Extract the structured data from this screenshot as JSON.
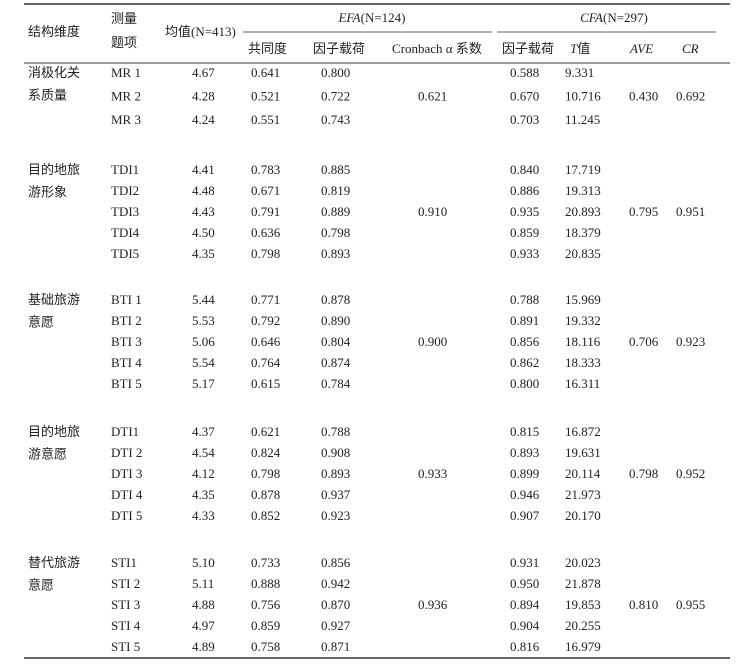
{
  "header": {
    "dimension": "结构维度",
    "item": [
      "测量",
      "题项"
    ],
    "mean": "均值(N=413)",
    "efa": {
      "name": "EFA",
      "n": "(N=124)"
    },
    "cfa": {
      "name": "CFA",
      "n": "(N=297)"
    },
    "sub": {
      "communality": "共同度",
      "efa_loading": "因子载荷",
      "cronbach": "Cronbach α 系数",
      "cfa_loading": "因子载荷",
      "t": "T",
      "t_suffix": "值",
      "ave": "AVE",
      "cr": "CR"
    }
  },
  "groups": [
    {
      "dimension": [
        "消极化关",
        "系质量"
      ],
      "cronbach": "0.621",
      "ave": "0.430",
      "cr": "0.692",
      "rows": [
        [
          "MR 1",
          "4.67",
          "0.641",
          "0.800",
          "0.588",
          "9.331"
        ],
        [
          "MR 2",
          "4.28",
          "0.521",
          "0.722",
          "0.670",
          "10.716"
        ],
        [
          "MR 3",
          "4.24",
          "0.551",
          "0.743",
          "0.703",
          "11.245"
        ]
      ]
    },
    {
      "dimension": [
        "目的地旅",
        "游形象"
      ],
      "cronbach": "0.910",
      "ave": "0.795",
      "cr": "0.951",
      "rows": [
        [
          "TDI1",
          "4.41",
          "0.783",
          "0.885",
          "0.840",
          "17.719"
        ],
        [
          "TDI2",
          "4.48",
          "0.671",
          "0.819",
          "0.886",
          "19.313"
        ],
        [
          "TDI3",
          "4.43",
          "0.791",
          "0.889",
          "0.935",
          "20.893"
        ],
        [
          "TDI4",
          "4.50",
          "0.636",
          "0.798",
          "0.859",
          "18.379"
        ],
        [
          "TDI5",
          "4.35",
          "0.798",
          "0.893",
          "0.933",
          "20.835"
        ]
      ]
    },
    {
      "dimension": [
        "基础旅游",
        "意愿"
      ],
      "cronbach": "0.900",
      "ave": "0.706",
      "cr": "0.923",
      "rows": [
        [
          "BTI 1",
          "5.44",
          "0.771",
          "0.878",
          "0.788",
          "15.969"
        ],
        [
          "BTI 2",
          "5.53",
          "0.792",
          "0.890",
          "0.891",
          "19.332"
        ],
        [
          "BTI 3",
          "5.06",
          "0.646",
          "0.804",
          "0.856",
          "18.116"
        ],
        [
          "BTI 4",
          "5.54",
          "0.764",
          "0.874",
          "0.862",
          "18.333"
        ],
        [
          "BTI 5",
          "5.17",
          "0.615",
          "0.784",
          "0.800",
          "16.311"
        ]
      ]
    },
    {
      "dimension": [
        "目的地旅",
        "游意愿"
      ],
      "cronbach": "0.933",
      "ave": "0.798",
      "cr": "0.952",
      "rows": [
        [
          "DTI1",
          "4.37",
          "0.621",
          "0.788",
          "0.815",
          "16.872"
        ],
        [
          "DTI 2",
          "4.54",
          "0.824",
          "0.908",
          "0.893",
          "19.631"
        ],
        [
          "DTI 3",
          "4.12",
          "0.798",
          "0.893",
          "0.899",
          "20.114"
        ],
        [
          "DTI 4",
          "4.35",
          "0.878",
          "0.937",
          "0.946",
          "21.973"
        ],
        [
          "DTI 5",
          "4.33",
          "0.852",
          "0.923",
          "0.907",
          "20.170"
        ]
      ]
    },
    {
      "dimension": [
        "替代旅游",
        "意愿"
      ],
      "cronbach": "0.936",
      "ave": "0.810",
      "cr": "0.955",
      "rows": [
        [
          "STI1",
          "5.10",
          "0.733",
          "0.856",
          "0.931",
          "20.023"
        ],
        [
          "STI 2",
          "5.11",
          "0.888",
          "0.942",
          "0.950",
          "21.878"
        ],
        [
          "STI 3",
          "4.88",
          "0.756",
          "0.870",
          "0.894",
          "19.853"
        ],
        [
          "STI 4",
          "4.97",
          "0.859",
          "0.927",
          "0.904",
          "20.255"
        ],
        [
          "STI 5",
          "4.89",
          "0.758",
          "0.871",
          "0.816",
          "16.979"
        ]
      ]
    }
  ]
}
